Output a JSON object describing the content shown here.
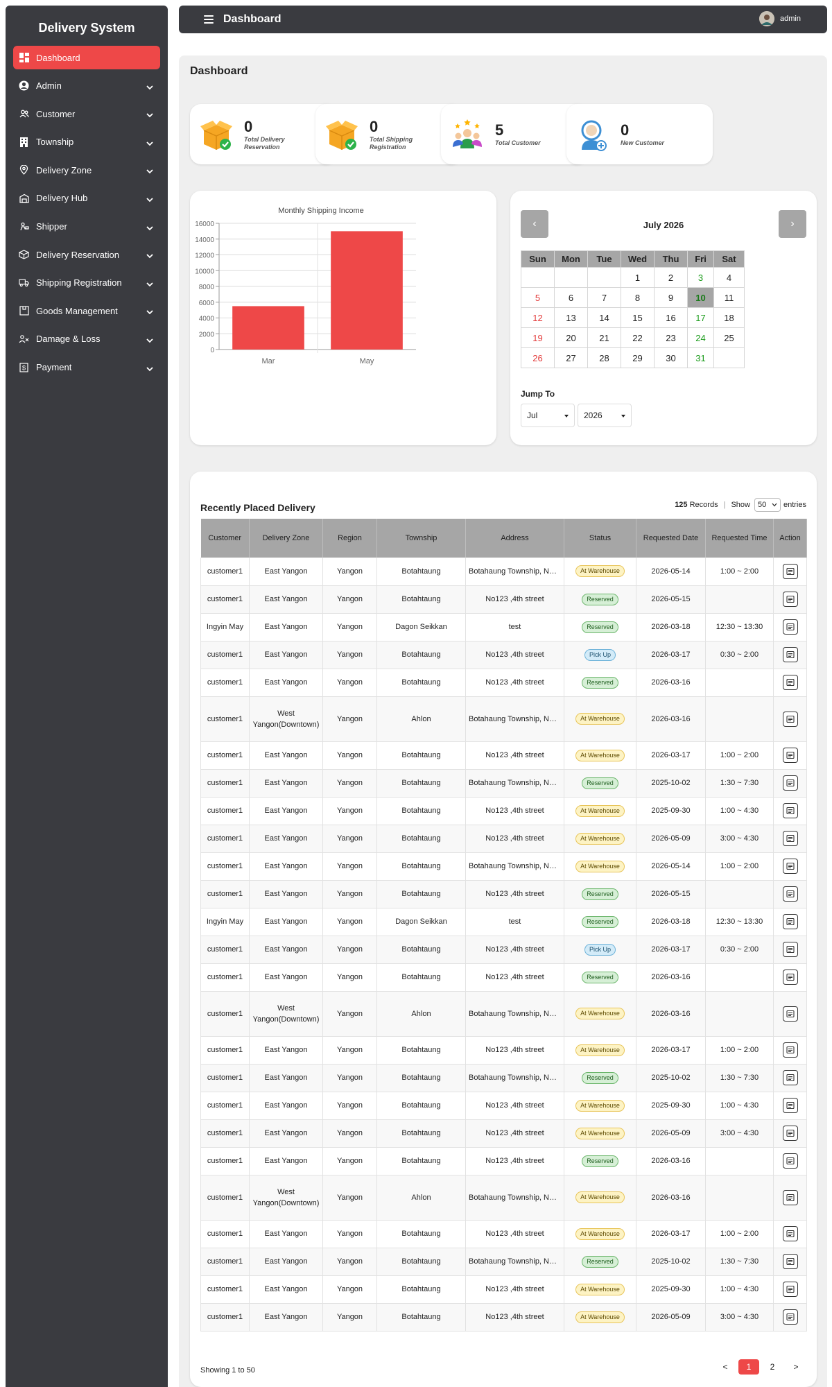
{
  "brand": "Delivery System",
  "sidebar": {
    "items": [
      {
        "label": "Dashboard",
        "icon": "dashboard-icon"
      },
      {
        "label": "Admin",
        "icon": "user-circle-icon"
      },
      {
        "label": "Customer",
        "icon": "users-icon"
      },
      {
        "label": "Township",
        "icon": "building-icon"
      },
      {
        "label": "Delivery Zone",
        "icon": "map-pin-icon"
      },
      {
        "label": "Delivery Hub",
        "icon": "warehouse-icon"
      },
      {
        "label": "Shipper",
        "icon": "shipper-icon"
      },
      {
        "label": "Delivery Reservation",
        "icon": "box-icon"
      },
      {
        "label": "Shipping Registration",
        "icon": "truck-icon"
      },
      {
        "label": "Goods Management",
        "icon": "package-icon"
      },
      {
        "label": "Damage & Loss",
        "icon": "damage-icon"
      },
      {
        "label": "Payment",
        "icon": "dollar-icon"
      }
    ]
  },
  "header": {
    "title": "Dashboard",
    "user": "admin"
  },
  "main": {
    "title": "Dashboard"
  },
  "stats": [
    {
      "value": "0",
      "label": "Total Delivery Reservation",
      "icon": "box-check-icon"
    },
    {
      "value": "0",
      "label": "Total Shipping Registration",
      "icon": "box-check-icon"
    },
    {
      "value": "5",
      "label": "Total Customer",
      "icon": "customer-group-icon"
    },
    {
      "value": "0",
      "label": "New Customer",
      "icon": "new-customer-icon"
    }
  ],
  "chart_data": {
    "type": "bar",
    "title": "Monthly Shipping Income",
    "categories": [
      "Mar",
      "May"
    ],
    "values": [
      5500,
      15000
    ],
    "yticks": [
      "0",
      "2000",
      "4000",
      "6000",
      "8000",
      "10000",
      "12000",
      "14000",
      "16000"
    ],
    "ylim": [
      0,
      16000
    ],
    "xlabel": "",
    "ylabel": "",
    "grid": true,
    "color": "#ee4848"
  },
  "calendar": {
    "month_label": "July 2026",
    "prev": "‹",
    "next": "›",
    "weekdays": [
      "Sun",
      "Mon",
      "Tue",
      "Wed",
      "Thu",
      "Fri",
      "Sat"
    ],
    "weeks": [
      [
        "",
        "",
        "",
        "1",
        "2",
        "3",
        "4"
      ],
      [
        "5",
        "6",
        "7",
        "8",
        "9",
        "10",
        "11"
      ],
      [
        "12",
        "13",
        "14",
        "15",
        "16",
        "17",
        "18"
      ],
      [
        "19",
        "20",
        "21",
        "22",
        "23",
        "24",
        "25"
      ],
      [
        "26",
        "27",
        "28",
        "29",
        "30",
        "31",
        ""
      ]
    ],
    "today": "10",
    "jump_label": "Jump To",
    "month_select": "Jul",
    "year_select": "2026"
  },
  "table": {
    "title": "Recently Placed Delivery",
    "records": "125",
    "records_label": "Records",
    "show_label": "Show",
    "show_value": "50",
    "entries_label": "entries",
    "columns": [
      "Customer",
      "Delivery Zone",
      "Region",
      "Township",
      "Address",
      "Status",
      "Requested Date",
      "Requested Time",
      "Action"
    ],
    "rows": [
      [
        "customer1",
        "East Yangon",
        "Yangon",
        "Botahtaung",
        "Botahaung Township, No123 ,4th street",
        "At Warehouse",
        "2026-05-14",
        "1:00 ~ 2:00"
      ],
      [
        "customer1",
        "East Yangon",
        "Yangon",
        "Botahtaung",
        "No123 ,4th street",
        "Reserved",
        "2026-05-15",
        ""
      ],
      [
        "Ingyin May",
        "East Yangon",
        "Yangon",
        "Dagon Seikkan",
        "test",
        "Reserved",
        "2026-03-18",
        "12:30 ~ 13:30"
      ],
      [
        "customer1",
        "East Yangon",
        "Yangon",
        "Botahtaung",
        "No123 ,4th street",
        "Pick Up",
        "2026-03-17",
        "0:30 ~ 2:00"
      ],
      [
        "customer1",
        "East Yangon",
        "Yangon",
        "Botahtaung",
        "No123 ,4th street",
        "Reserved",
        "2026-03-16",
        ""
      ],
      [
        "customer1",
        "West Yangon(Downtown)",
        "Yangon",
        "Ahlon",
        "Botahaung Township, No123 ,4th street",
        "At Warehouse",
        "2026-03-16",
        ""
      ],
      [
        "customer1",
        "East Yangon",
        "Yangon",
        "Botahtaung",
        "No123 ,4th street",
        "At Warehouse",
        "2026-03-17",
        "1:00 ~ 2:00"
      ],
      [
        "customer1",
        "East Yangon",
        "Yangon",
        "Botahtaung",
        "Botahaung Township, No123 ,4th street",
        "Reserved",
        "2025-10-02",
        "1:30 ~ 7:30"
      ],
      [
        "customer1",
        "East Yangon",
        "Yangon",
        "Botahtaung",
        "No123 ,4th street",
        "At Warehouse",
        "2025-09-30",
        "1:00 ~ 4:30"
      ],
      [
        "customer1",
        "East Yangon",
        "Yangon",
        "Botahtaung",
        "No123 ,4th street",
        "At Warehouse",
        "2026-05-09",
        "3:00 ~ 4:30"
      ],
      [
        "customer1",
        "East Yangon",
        "Yangon",
        "Botahtaung",
        "Botahaung Township, No123 ,4th street",
        "At Warehouse",
        "2026-05-14",
        "1:00 ~ 2:00"
      ],
      [
        "customer1",
        "East Yangon",
        "Yangon",
        "Botahtaung",
        "No123 ,4th street",
        "Reserved",
        "2026-05-15",
        ""
      ],
      [
        "Ingyin May",
        "East Yangon",
        "Yangon",
        "Dagon Seikkan",
        "test",
        "Reserved",
        "2026-03-18",
        "12:30 ~ 13:30"
      ],
      [
        "customer1",
        "East Yangon",
        "Yangon",
        "Botahtaung",
        "No123 ,4th street",
        "Pick Up",
        "2026-03-17",
        "0:30 ~ 2:00"
      ],
      [
        "customer1",
        "East Yangon",
        "Yangon",
        "Botahtaung",
        "No123 ,4th street",
        "Reserved",
        "2026-03-16",
        ""
      ],
      [
        "customer1",
        "West Yangon(Downtown)",
        "Yangon",
        "Ahlon",
        "Botahaung Township, No123 ,4th street",
        "At Warehouse",
        "2026-03-16",
        ""
      ],
      [
        "customer1",
        "East Yangon",
        "Yangon",
        "Botahtaung",
        "No123 ,4th street",
        "At Warehouse",
        "2026-03-17",
        "1:00 ~ 2:00"
      ],
      [
        "customer1",
        "East Yangon",
        "Yangon",
        "Botahtaung",
        "Botahaung Township, No123 ,4th street",
        "Reserved",
        "2025-10-02",
        "1:30 ~ 7:30"
      ],
      [
        "customer1",
        "East Yangon",
        "Yangon",
        "Botahtaung",
        "No123 ,4th street",
        "At Warehouse",
        "2025-09-30",
        "1:00 ~ 4:30"
      ],
      [
        "customer1",
        "East Yangon",
        "Yangon",
        "Botahtaung",
        "No123 ,4th street",
        "At Warehouse",
        "2026-05-09",
        "3:00 ~ 4:30"
      ],
      [
        "customer1",
        "East Yangon",
        "Yangon",
        "Botahtaung",
        "No123 ,4th street",
        "Reserved",
        "2026-03-16",
        ""
      ],
      [
        "customer1",
        "West Yangon(Downtown)",
        "Yangon",
        "Ahlon",
        "Botahaung Township, No123 ,4th street",
        "At Warehouse",
        "2026-03-16",
        ""
      ],
      [
        "customer1",
        "East Yangon",
        "Yangon",
        "Botahtaung",
        "No123 ,4th street",
        "At Warehouse",
        "2026-03-17",
        "1:00 ~ 2:00"
      ],
      [
        "customer1",
        "East Yangon",
        "Yangon",
        "Botahtaung",
        "Botahaung Township, No123 ,4th street",
        "Reserved",
        "2025-10-02",
        "1:30 ~ 7:30"
      ],
      [
        "customer1",
        "East Yangon",
        "Yangon",
        "Botahtaung",
        "No123 ,4th street",
        "At Warehouse",
        "2025-09-30",
        "1:00 ~ 4:30"
      ],
      [
        "customer1",
        "East Yangon",
        "Yangon",
        "Botahtaung",
        "No123 ,4th street",
        "At Warehouse",
        "2026-05-09",
        "3:00 ~ 4:30"
      ]
    ],
    "showing": "Showing 1 to 50",
    "pages": [
      "<",
      "1",
      "2",
      ">"
    ],
    "current_page": "1"
  },
  "colors": {
    "accent": "#ee4848",
    "sidebar": "#3a3b40",
    "header_gray": "#a6a6a6"
  }
}
